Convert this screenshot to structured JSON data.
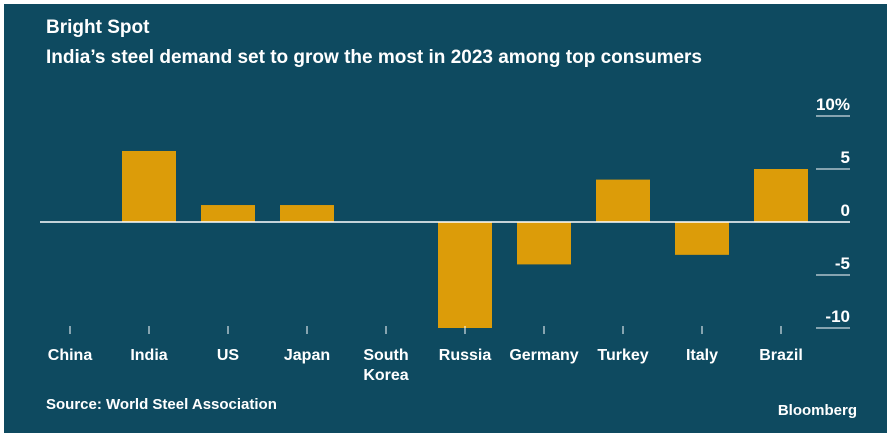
{
  "header": {
    "title": "Bright Spot",
    "subtitle": "India’s steel demand set to grow the most in 2023 among top consumers"
  },
  "footer": {
    "source": "Source: World Steel Association",
    "brand": "Bloomberg"
  },
  "colors": {
    "background": "#0e4a60",
    "bar": "#dc9c09",
    "text": "#ffffff"
  },
  "chart_data": {
    "type": "bar",
    "title": "India’s steel demand set to grow the most in 2023 among top consumers",
    "categories": [
      "China",
      "India",
      "US",
      "Japan",
      "South Korea",
      "Russia",
      "Germany",
      "Turkey",
      "Italy",
      "Brazil"
    ],
    "category_lines": [
      [
        "China"
      ],
      [
        "India"
      ],
      [
        "US"
      ],
      [
        "Japan"
      ],
      [
        "South",
        "Korea"
      ],
      [
        "Russia"
      ],
      [
        "Germany"
      ],
      [
        "Turkey"
      ],
      [
        "Italy"
      ],
      [
        "Brazil"
      ]
    ],
    "values": [
      0,
      6.7,
      1.6,
      1.6,
      0,
      -10,
      -4,
      4,
      -3.1,
      5
    ],
    "ylim": [
      -10,
      10
    ],
    "yticks": [
      10,
      5,
      0,
      -5,
      -10
    ],
    "ytick_labels": [
      "10%",
      "5",
      "0",
      "-5",
      "-10"
    ],
    "yaxis_position": "right",
    "grid": false,
    "legend": "none"
  }
}
